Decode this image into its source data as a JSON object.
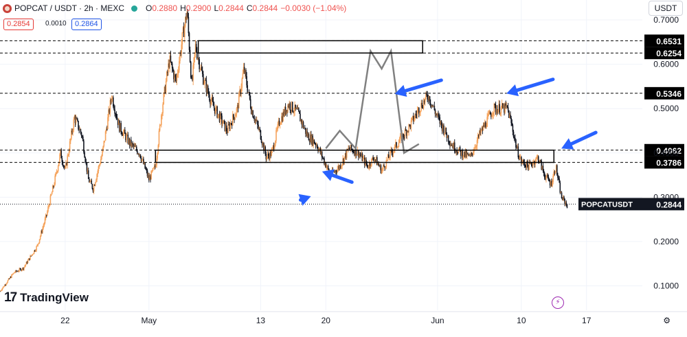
{
  "header": {
    "symbol": "POPCAT / USDT · 2h · MEXC",
    "open_label": "O",
    "open": "0.2880",
    "high_label": "H",
    "high": "0.2900",
    "low_label": "L",
    "low": "0.2844",
    "close_label": "C",
    "close": "0.2844",
    "change": "−0.0030 (−1.04%)"
  },
  "quote": {
    "bid": "0.2854",
    "spread": "0.0010",
    "ask": "0.2864"
  },
  "currency_button": "USDT",
  "branding": {
    "name": "TradingView"
  },
  "colors": {
    "up": "#f5a35c",
    "down": "#131722",
    "price_line": "#ef5350",
    "arrow": "#2962ff",
    "zone": "#000000",
    "pattern": "#808080"
  },
  "chart_data": {
    "type": "candlestick",
    "title": "POPCAT / USDT · 2h · MEXC",
    "ylim": [
      0.045,
      0.745
    ],
    "y_ticks": [
      "0.7000",
      "0.6000",
      "0.5000",
      "0.4000",
      "0.3000",
      "0.2000",
      "0.1000"
    ],
    "y_tick_values": [
      0.7,
      0.6,
      0.5,
      0.4,
      0.3,
      0.2,
      0.1
    ],
    "x_ticks": [
      "22",
      "May",
      "13",
      "20",
      "Jun",
      "10",
      "17"
    ],
    "x_tick_days": [
      -9,
      0,
      12,
      19,
      31,
      40,
      47
    ],
    "x_range_days": [
      -16,
      53
    ],
    "horizontal_levels": [
      {
        "label": "0.6531",
        "value": 0.6531
      },
      {
        "label": "0.6254",
        "value": 0.6254
      },
      {
        "label": "0.5346",
        "value": 0.5346
      },
      {
        "label": "0.4062",
        "value": 0.4062
      },
      {
        "label": "0.3786",
        "value": 0.3786
      }
    ],
    "last_price": {
      "label": "POPCATUSDT",
      "value": "0.2844"
    },
    "zones": [
      {
        "from_day": 5.3,
        "to_day": 29.4,
        "low": 0.6254,
        "high": 0.6531
      },
      {
        "from_day": 0.7,
        "to_day": 43.5,
        "low": 0.3786,
        "high": 0.4062
      }
    ],
    "pattern_path": [
      [
        19.0,
        0.41
      ],
      [
        20.5,
        0.45
      ],
      [
        22.2,
        0.41
      ],
      [
        23.8,
        0.63
      ],
      [
        25.0,
        0.59
      ],
      [
        26.0,
        0.63
      ],
      [
        27.4,
        0.4
      ],
      [
        29.0,
        0.42
      ]
    ],
    "price_path": [
      [
        -16.0,
        0.088
      ],
      [
        -14.5,
        0.13
      ],
      [
        -13.5,
        0.14
      ],
      [
        -12.0,
        0.19
      ],
      [
        -11.0,
        0.26
      ],
      [
        -10.2,
        0.33
      ],
      [
        -9.5,
        0.4
      ],
      [
        -9.0,
        0.36
      ],
      [
        -8.0,
        0.48
      ],
      [
        -7.2,
        0.44
      ],
      [
        -6.5,
        0.34
      ],
      [
        -6.0,
        0.32
      ],
      [
        -5.0,
        0.4
      ],
      [
        -4.0,
        0.53
      ],
      [
        -3.2,
        0.46
      ],
      [
        -2.0,
        0.42
      ],
      [
        -1.0,
        0.4
      ],
      [
        0.0,
        0.34
      ],
      [
        0.7,
        0.37
      ],
      [
        1.4,
        0.5
      ],
      [
        2.2,
        0.61
      ],
      [
        2.9,
        0.56
      ],
      [
        3.6,
        0.66
      ],
      [
        4.1,
        0.72
      ],
      [
        4.6,
        0.55
      ],
      [
        5.0,
        0.64
      ],
      [
        5.8,
        0.57
      ],
      [
        6.8,
        0.51
      ],
      [
        7.6,
        0.48
      ],
      [
        8.4,
        0.45
      ],
      [
        9.5,
        0.5
      ],
      [
        10.2,
        0.59
      ],
      [
        11.0,
        0.5
      ],
      [
        12.0,
        0.44
      ],
      [
        12.6,
        0.39
      ],
      [
        13.2,
        0.4
      ],
      [
        14.0,
        0.47
      ],
      [
        15.0,
        0.51
      ],
      [
        16.0,
        0.49
      ],
      [
        17.0,
        0.44
      ],
      [
        18.0,
        0.42
      ],
      [
        19.5,
        0.35
      ],
      [
        20.5,
        0.37
      ],
      [
        21.5,
        0.41
      ],
      [
        22.5,
        0.4
      ],
      [
        23.5,
        0.37
      ],
      [
        24.2,
        0.39
      ],
      [
        25.0,
        0.36
      ],
      [
        26.0,
        0.4
      ],
      [
        27.0,
        0.43
      ],
      [
        28.0,
        0.46
      ],
      [
        29.0,
        0.5
      ],
      [
        30.0,
        0.53
      ],
      [
        31.0,
        0.48
      ],
      [
        31.5,
        0.46
      ],
      [
        32.5,
        0.42
      ],
      [
        33.5,
        0.4
      ],
      [
        34.5,
        0.39
      ],
      [
        35.5,
        0.44
      ],
      [
        37.0,
        0.5
      ],
      [
        38.5,
        0.5
      ],
      [
        39.0,
        0.46
      ],
      [
        39.5,
        0.41
      ],
      [
        40.0,
        0.38
      ],
      [
        40.8,
        0.37
      ],
      [
        41.8,
        0.39
      ],
      [
        42.5,
        0.35
      ],
      [
        43.2,
        0.33
      ],
      [
        43.7,
        0.37
      ],
      [
        44.3,
        0.3
      ],
      [
        45.0,
        0.28
      ]
    ],
    "arrows_count": 5
  }
}
